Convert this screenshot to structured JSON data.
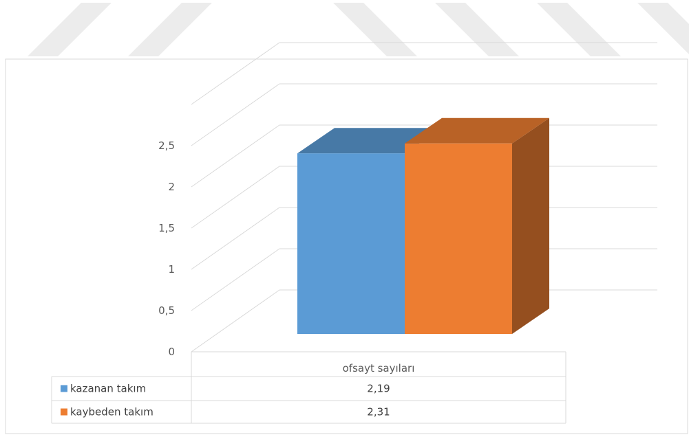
{
  "chart_data": {
    "type": "bar",
    "style": "3d-clustered-column",
    "title": "",
    "xlabel": "",
    "ylabel": "",
    "categories": [
      "ofsayt sayıları"
    ],
    "series": [
      {
        "name": "kazanan takım",
        "values": [
          2.19
        ],
        "value_labels": [
          "2,19"
        ],
        "color": "#5b9bd5"
      },
      {
        "name": "kaybeden takım",
        "values": [
          2.31
        ],
        "value_labels": [
          "2,31"
        ],
        "color": "#ed7d31"
      }
    ],
    "ylim": [
      0,
      3
    ],
    "y_ticks": [
      "0",
      "0,5",
      "1",
      "1,5",
      "2",
      "2,5"
    ],
    "grid": true,
    "data_table": true,
    "legend": "in-data-table"
  },
  "colors": {
    "watermark": "#ececec",
    "gridline": "#d9d9d9",
    "border": "#d9d9d9",
    "text": "#595959"
  }
}
